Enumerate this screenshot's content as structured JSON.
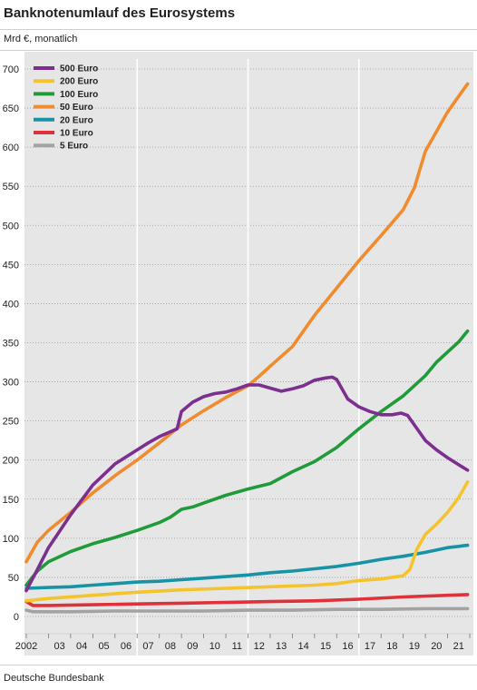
{
  "header": {
    "title": "Banknotenumlauf des Eurosystems",
    "subtitle": "Mrd €, monatlich"
  },
  "footer": {
    "source": "Deutsche Bundesbank"
  },
  "chart_data": {
    "type": "line",
    "title": "Banknotenumlauf des Eurosystems",
    "subtitle": "Mrd €, monatlich",
    "xlabel": "",
    "ylabel": "",
    "x_unit": "year",
    "xlim": [
      2002.0,
      2022.0
    ],
    "ylim": [
      0,
      700
    ],
    "yticks": [
      0,
      50,
      100,
      150,
      200,
      250,
      300,
      350,
      400,
      450,
      500,
      550,
      600,
      650,
      700
    ],
    "xticks": [
      {
        "x": 2002.0,
        "label": "2002"
      },
      {
        "x": 2003.5,
        "label": "03"
      },
      {
        "x": 2004.5,
        "label": "04"
      },
      {
        "x": 2005.5,
        "label": "05"
      },
      {
        "x": 2006.5,
        "label": "06"
      },
      {
        "x": 2007.5,
        "label": "07"
      },
      {
        "x": 2008.5,
        "label": "08"
      },
      {
        "x": 2009.5,
        "label": "09"
      },
      {
        "x": 2010.5,
        "label": "10"
      },
      {
        "x": 2011.5,
        "label": "11"
      },
      {
        "x": 2012.5,
        "label": "12"
      },
      {
        "x": 2013.5,
        "label": "13"
      },
      {
        "x": 2014.5,
        "label": "14"
      },
      {
        "x": 2015.5,
        "label": "15"
      },
      {
        "x": 2016.5,
        "label": "16"
      },
      {
        "x": 2017.5,
        "label": "17"
      },
      {
        "x": 2018.5,
        "label": "18"
      },
      {
        "x": 2019.5,
        "label": "19"
      },
      {
        "x": 2020.5,
        "label": "20"
      },
      {
        "x": 2021.5,
        "label": "21"
      }
    ],
    "year_lines": [
      2007,
      2012,
      2017
    ],
    "grid": "horizontal dotted, vertical white lines at 2007, 2012, 2017",
    "legend": "top-left",
    "series": [
      {
        "name": "500 Euro",
        "color": "#7b2f8e",
        "x": [
          2002.0,
          2002.5,
          2003.0,
          2004.0,
          2005.0,
          2006.0,
          2007.0,
          2007.5,
          2008.0,
          2008.8,
          2009.0,
          2009.5,
          2010.0,
          2010.5,
          2011.0,
          2011.5,
          2012.0,
          2012.5,
          2013.0,
          2013.5,
          2014.0,
          2014.5,
          2015.0,
          2015.5,
          2015.8,
          2016.0,
          2016.5,
          2017.0,
          2017.5,
          2018.0,
          2018.5,
          2018.9,
          2019.2,
          2019.5,
          2020.0,
          2020.5,
          2021.0,
          2021.5,
          2021.9
        ],
        "values": [
          33,
          60,
          88,
          130,
          168,
          195,
          213,
          222,
          230,
          240,
          262,
          274,
          281,
          285,
          287,
          291,
          296,
          296,
          292,
          288,
          291,
          295,
          302,
          305,
          306,
          303,
          278,
          268,
          262,
          258,
          258,
          260,
          257,
          245,
          225,
          213,
          203,
          194,
          187
        ]
      },
      {
        "name": "200 Euro",
        "color": "#f5c32c",
        "x": [
          2002.0,
          2003.0,
          2005.0,
          2007.0,
          2009.0,
          2011.0,
          2013.0,
          2015.0,
          2016.0,
          2017.0,
          2018.0,
          2019.0,
          2019.3,
          2019.6,
          2020.0,
          2020.5,
          2021.0,
          2021.5,
          2021.9
        ],
        "values": [
          20,
          23,
          27,
          31,
          34,
          36,
          38,
          40,
          42,
          46,
          48,
          52,
          60,
          85,
          105,
          118,
          133,
          152,
          172
        ]
      },
      {
        "name": "100 Euro",
        "color": "#1f9b3a",
        "x": [
          2002.0,
          2002.5,
          2003.0,
          2004.0,
          2005.0,
          2006.0,
          2007.0,
          2008.0,
          2008.5,
          2009.0,
          2009.5,
          2010.0,
          2011.0,
          2012.0,
          2013.0,
          2014.0,
          2015.0,
          2016.0,
          2017.0,
          2018.0,
          2019.0,
          2020.0,
          2020.5,
          2021.0,
          2021.5,
          2021.9
        ],
        "values": [
          40,
          58,
          70,
          83,
          93,
          101,
          110,
          120,
          127,
          137,
          140,
          145,
          155,
          163,
          170,
          185,
          198,
          216,
          240,
          262,
          282,
          308,
          325,
          338,
          351,
          365
        ]
      },
      {
        "name": "50 Euro",
        "color": "#f08c2e",
        "x": [
          2002.0,
          2002.5,
          2003.0,
          2004.0,
          2005.0,
          2006.0,
          2007.0,
          2008.0,
          2009.0,
          2010.0,
          2011.0,
          2012.0,
          2012.5,
          2013.0,
          2014.0,
          2015.0,
          2016.0,
          2017.0,
          2018.0,
          2019.0,
          2019.5,
          2020.0,
          2020.5,
          2021.0,
          2021.5,
          2021.9
        ],
        "values": [
          70,
          95,
          110,
          133,
          158,
          180,
          200,
          222,
          245,
          263,
          280,
          295,
          307,
          320,
          345,
          385,
          420,
          455,
          487,
          520,
          548,
          595,
          620,
          645,
          665,
          681
        ]
      },
      {
        "name": "20 Euro",
        "color": "#1693a5",
        "x": [
          2002.0,
          2003.0,
          2004.0,
          2005.0,
          2006.0,
          2007.0,
          2008.0,
          2009.0,
          2010.0,
          2011.0,
          2012.0,
          2013.0,
          2014.0,
          2015.0,
          2016.0,
          2017.0,
          2018.0,
          2019.0,
          2020.0,
          2021.0,
          2021.9
        ],
        "values": [
          36,
          37,
          38,
          40,
          42,
          44,
          45,
          47,
          49,
          51,
          53,
          56,
          58,
          61,
          64,
          68,
          73,
          77,
          82,
          88,
          91
        ]
      },
      {
        "name": "10 Euro",
        "color": "#e0303a",
        "x": [
          2002.0,
          2002.3,
          2003.0,
          2005.0,
          2007.0,
          2009.0,
          2011.0,
          2013.0,
          2015.0,
          2017.0,
          2019.0,
          2021.0,
          2021.9
        ],
        "values": [
          19,
          14,
          14,
          15,
          16,
          17,
          18,
          19,
          20,
          22,
          25,
          27,
          28
        ]
      },
      {
        "name": "5 Euro",
        "color": "#a3a3a3",
        "x": [
          2002.0,
          2002.3,
          2004.0,
          2006.0,
          2008.0,
          2010.0,
          2012.0,
          2014.0,
          2016.0,
          2018.0,
          2020.0,
          2021.9
        ],
        "values": [
          8,
          6,
          6,
          7,
          7,
          7,
          8,
          8,
          9,
          9,
          10,
          10
        ]
      }
    ]
  }
}
